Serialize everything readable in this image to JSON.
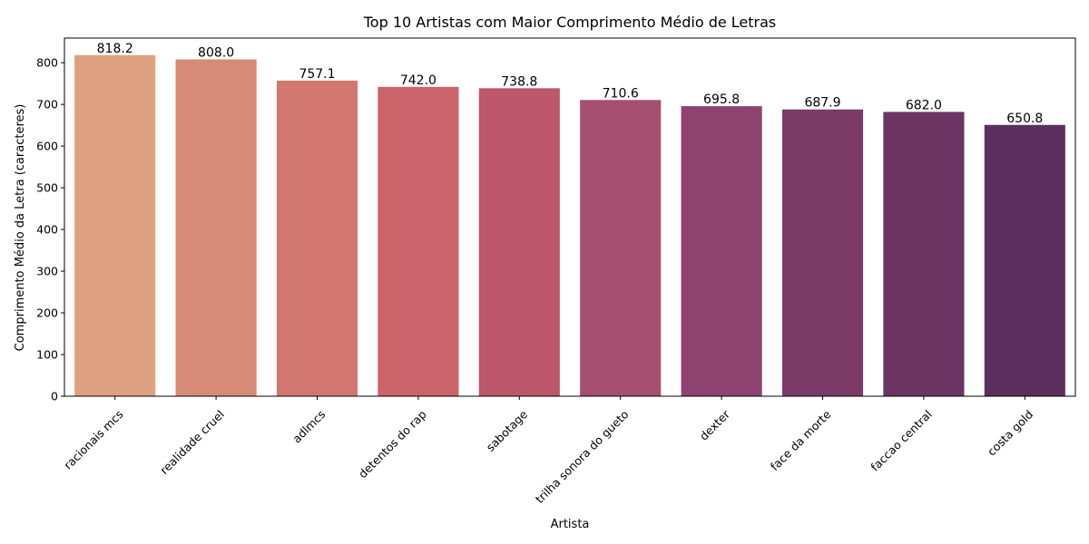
{
  "chart_data": {
    "type": "bar",
    "title": "Top 10 Artistas com Maior Comprimento Médio de Letras",
    "xlabel": "Artista",
    "ylabel": "Comprimento Médio da Letra (caracteres)",
    "categories": [
      "racionais mcs",
      "realidade cruel",
      "adlmcs",
      "detentos do rap",
      "sabotage",
      "trilha sonora do gueto",
      "dexter",
      "face da morte",
      "faccao central",
      "costa gold"
    ],
    "values": [
      818.2,
      808.0,
      757.1,
      742.0,
      738.8,
      710.6,
      695.8,
      687.9,
      682.0,
      650.8
    ],
    "value_labels": [
      "818.2",
      "808.0",
      "757.1",
      "742.0",
      "738.8",
      "710.6",
      "695.8",
      "687.9",
      "682.0",
      "650.8"
    ],
    "ylim": [
      0,
      859.11
    ],
    "yticks": [
      0,
      100,
      200,
      300,
      400,
      500,
      600,
      700,
      800
    ],
    "grid": false,
    "legend": "none",
    "colors": [
      "#dda081",
      "#d78a75",
      "#d2776f",
      "#cb636a",
      "#bd576c",
      "#a54e6f",
      "#8e4270",
      "#7c3a69",
      "#6b3463",
      "#5b2f5d"
    ]
  }
}
